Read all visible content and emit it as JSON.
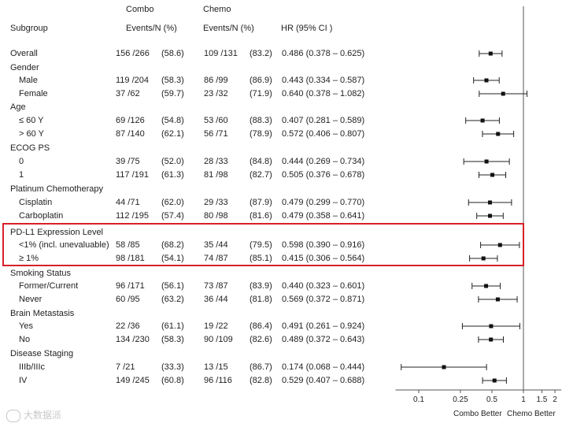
{
  "header": {
    "arm1": "Combo",
    "arm2": "Chemo",
    "col_subgroup": "Subgroup",
    "col_events1": "Events/N (%)",
    "col_events2": "Events/N (%)",
    "col_hr": "HR (95% CI )"
  },
  "rows": [
    {
      "type": "row",
      "label": "Overall",
      "indent": false,
      "e1": "156 /266",
      "p1": "(58.6)",
      "e2": "109 /131",
      "p2": "(83.2)",
      "hr_text": "0.486 (0.378 – 0.625)"
    },
    {
      "type": "group",
      "label": "Gender"
    },
    {
      "type": "row",
      "label": "Male",
      "indent": true,
      "e1": "119 /204",
      "p1": "(58.3)",
      "e2": "86 /99",
      "p2": "(86.9)",
      "hr_text": "0.443 (0.334 – 0.587)"
    },
    {
      "type": "row",
      "label": "Female",
      "indent": true,
      "e1": "37 /62",
      "p1": "(59.7)",
      "e2": "23 /32",
      "p2": "(71.9)",
      "hr_text": "0.640 (0.378 – 1.082)"
    },
    {
      "type": "group",
      "label": "Age"
    },
    {
      "type": "row",
      "label": "≤  60  Y",
      "indent": true,
      "e1": "69 /126",
      "p1": "(54.8)",
      "e2": "53 /60",
      "p2": "(88.3)",
      "hr_text": "0.407 (0.281 – 0.589)"
    },
    {
      "type": "row",
      "label": "> 60 Y",
      "indent": true,
      "e1": "87 /140",
      "p1": "(62.1)",
      "e2": "56 /71",
      "p2": "(78.9)",
      "hr_text": "0.572 (0.406 – 0.807)"
    },
    {
      "type": "group",
      "label": "ECOG PS"
    },
    {
      "type": "row",
      "label": "0",
      "indent": true,
      "e1": "39 /75",
      "p1": "(52.0)",
      "e2": "28 /33",
      "p2": "(84.8)",
      "hr_text": "0.444 (0.269 – 0.734)"
    },
    {
      "type": "row",
      "label": "1",
      "indent": true,
      "e1": "117 /191",
      "p1": "(61.3)",
      "e2": "81 /98",
      "p2": "(82.7)",
      "hr_text": "0.505 (0.376 – 0.678)"
    },
    {
      "type": "group",
      "label": "Platinum Chemotherapy"
    },
    {
      "type": "row",
      "label": "Cisplatin",
      "indent": true,
      "e1": "44 /71",
      "p1": "(62.0)",
      "e2": "29 /33",
      "p2": "(87.9)",
      "hr_text": "0.479 (0.299 – 0.770)"
    },
    {
      "type": "row",
      "label": "Carboplatin",
      "indent": true,
      "e1": "112 /195",
      "p1": "(57.4)",
      "e2": "80 /98",
      "p2": "(81.6)",
      "hr_text": "0.479 (0.358 – 0.641)"
    },
    {
      "type": "group",
      "label": "PD-L1 Expression Level"
    },
    {
      "type": "row",
      "label": "<1% (incl. unevaluable)",
      "indent": true,
      "e1": "58 /85",
      "p1": "(68.2)",
      "e2": "35 /44",
      "p2": "(79.5)",
      "hr_text": "0.598 (0.390 – 0.916)"
    },
    {
      "type": "row",
      "label": "≥  1%",
      "indent": true,
      "e1": "98 /181",
      "p1": "(54.1)",
      "e2": "74 /87",
      "p2": "(85.1)",
      "hr_text": "0.415 (0.306 – 0.564)"
    },
    {
      "type": "group",
      "label": "Smoking Status"
    },
    {
      "type": "row",
      "label": "Former/Current",
      "indent": true,
      "e1": "96 /171",
      "p1": "(56.1)",
      "e2": "73 /87",
      "p2": "(83.9)",
      "hr_text": "0.440 (0.323 – 0.601)"
    },
    {
      "type": "row",
      "label": "Never",
      "indent": true,
      "e1": "60 /95",
      "p1": "(63.2)",
      "e2": "36 /44",
      "p2": "(81.8)",
      "hr_text": "0.569 (0.372 – 0.871)"
    },
    {
      "type": "group",
      "label": "Brain Metastasis"
    },
    {
      "type": "row",
      "label": "Yes",
      "indent": true,
      "e1": "22 /36",
      "p1": "(61.1)",
      "e2": "19 /22",
      "p2": "(86.4)",
      "hr_text": "0.491 (0.261 – 0.924)"
    },
    {
      "type": "row",
      "label": "No",
      "indent": true,
      "e1": "134 /230",
      "p1": "(58.3)",
      "e2": "90 /109",
      "p2": "(82.6)",
      "hr_text": "0.489 (0.372 – 0.643)"
    },
    {
      "type": "group",
      "label": "Disease Staging"
    },
    {
      "type": "row",
      "label": "IIIb/IIIc",
      "indent": true,
      "e1": "7 /21",
      "p1": "(33.3)",
      "e2": "13 /15",
      "p2": "(86.7)",
      "hr_text": "0.174 (0.068 – 0.444)"
    },
    {
      "type": "row",
      "label": "IV",
      "indent": true,
      "e1": "149 /245",
      "p1": "(60.8)",
      "e2": "96 /116",
      "p2": "(82.8)",
      "hr_text": "0.529 (0.407 – 0.688)"
    }
  ],
  "chart_data": {
    "type": "forest",
    "title": "",
    "xlabel_left": "Combo Better",
    "xlabel_right": "Chemo Better",
    "xscale": "log",
    "xlim": [
      0.06,
      2.3
    ],
    "xticks": [
      0.1,
      0.25,
      0.5,
      1,
      1.5,
      2
    ],
    "xtick_labels": [
      "0.1",
      "0.25",
      "0.5",
      "1",
      "1.5",
      "2"
    ],
    "reference_line": 1,
    "points": [
      {
        "label": "Overall",
        "hr": 0.486,
        "lo": 0.378,
        "hi": 0.625
      },
      {
        "label": "Male",
        "hr": 0.443,
        "lo": 0.334,
        "hi": 0.587
      },
      {
        "label": "Female",
        "hr": 0.64,
        "lo": 0.378,
        "hi": 1.082
      },
      {
        "label": "≤ 60 Y",
        "hr": 0.407,
        "lo": 0.281,
        "hi": 0.589
      },
      {
        "label": "> 60 Y",
        "hr": 0.572,
        "lo": 0.406,
        "hi": 0.807
      },
      {
        "label": "ECOG 0",
        "hr": 0.444,
        "lo": 0.269,
        "hi": 0.734
      },
      {
        "label": "ECOG 1",
        "hr": 0.505,
        "lo": 0.376,
        "hi": 0.678
      },
      {
        "label": "Cisplatin",
        "hr": 0.479,
        "lo": 0.299,
        "hi": 0.77
      },
      {
        "label": "Carboplatin",
        "hr": 0.479,
        "lo": 0.358,
        "hi": 0.641
      },
      {
        "label": "<1% (incl. unevaluable)",
        "hr": 0.598,
        "lo": 0.39,
        "hi": 0.916
      },
      {
        "label": "≥ 1%",
        "hr": 0.415,
        "lo": 0.306,
        "hi": 0.564
      },
      {
        "label": "Former/Current",
        "hr": 0.44,
        "lo": 0.323,
        "hi": 0.601
      },
      {
        "label": "Never",
        "hr": 0.569,
        "lo": 0.372,
        "hi": 0.871
      },
      {
        "label": "Brain Yes",
        "hr": 0.491,
        "lo": 0.261,
        "hi": 0.924
      },
      {
        "label": "Brain No",
        "hr": 0.489,
        "lo": 0.372,
        "hi": 0.643
      },
      {
        "label": "IIIb/IIIc",
        "hr": 0.174,
        "lo": 0.068,
        "hi": 0.444
      },
      {
        "label": "IV",
        "hr": 0.529,
        "lo": 0.407,
        "hi": 0.688
      }
    ],
    "highlight_group": "PD-L1 Expression Level",
    "highlight_color": "#d8202a"
  },
  "watermark": "大数据派"
}
